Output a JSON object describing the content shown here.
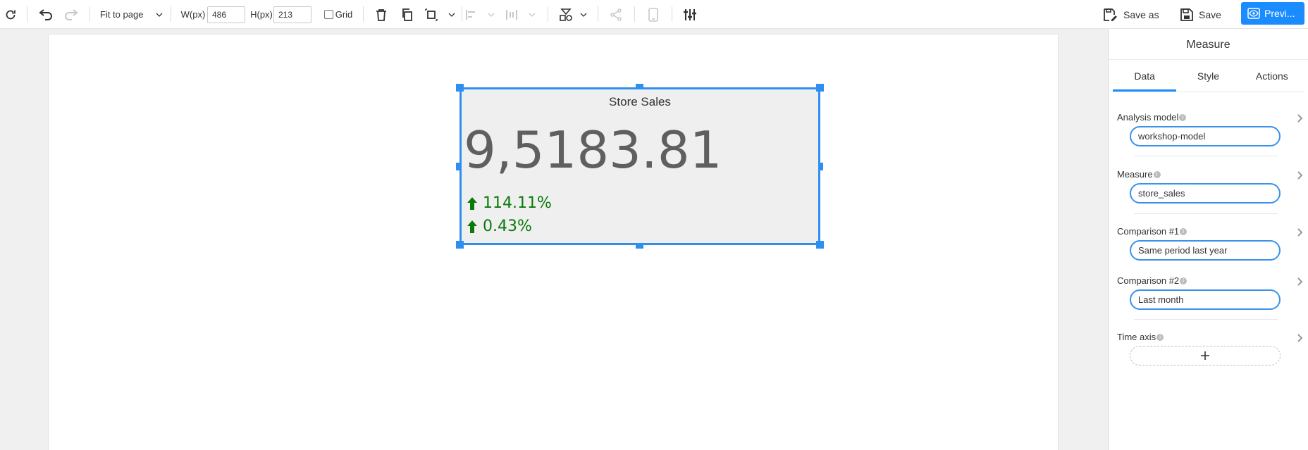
{
  "toolbar": {
    "fit_label": "Fit to page",
    "width_label": "W(px)",
    "width_value": "486",
    "height_label": "H(px)",
    "height_value": "213",
    "grid_label": "Grid",
    "save_as_label": "Save as",
    "save_label": "Save",
    "preview_label": "Previ..."
  },
  "widget": {
    "title": "Store Sales",
    "value": "9,5183.81",
    "comparison_1": "114.11%",
    "comparison_2": "0.43%",
    "up_color": "#0a7a0a"
  },
  "panel": {
    "title": "Measure",
    "tabs": [
      {
        "label": "Data",
        "active": true
      },
      {
        "label": "Style",
        "active": false
      },
      {
        "label": "Actions",
        "active": false
      }
    ],
    "fields": {
      "analysis_model": {
        "label": "Analysis model",
        "value": "workshop-model"
      },
      "measure": {
        "label": "Measure",
        "value": "store_sales"
      },
      "comparison_1": {
        "label": "Comparison #1",
        "value": "Same period last year"
      },
      "comparison_2": {
        "label": "Comparison #2",
        "value": "Last month"
      },
      "time_axis": {
        "label": "Time axis"
      }
    }
  },
  "colors": {
    "accent": "#1a8cff",
    "selection": "#2f8ff1"
  }
}
